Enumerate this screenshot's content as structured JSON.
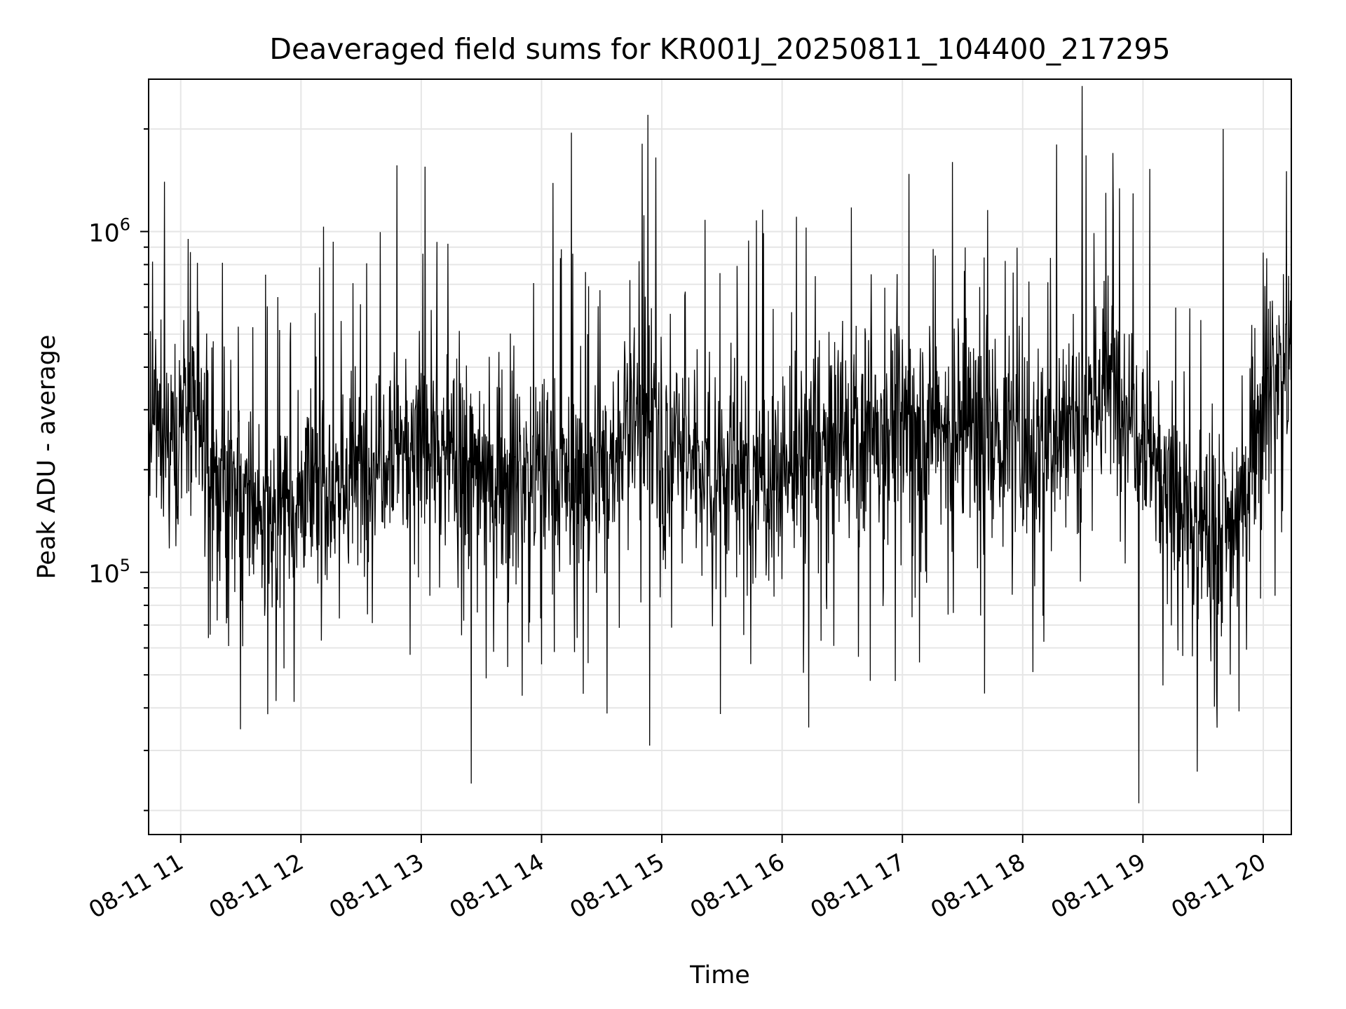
{
  "chart_data": {
    "type": "line",
    "title": "Deaveraged field sums for KR001J_20250811_104400_217295",
    "xlabel": "Time",
    "ylabel": "Peak ADU - average",
    "yscale": "log",
    "xlim": [
      "08-11 10:44",
      "08-11 20:14"
    ],
    "ylim": [
      17000,
      2800000
    ],
    "grid": true,
    "line_color": "#000000",
    "grid_color": "#e6e6e6",
    "x_ticks": [
      "08-11 11",
      "08-11 12",
      "08-11 13",
      "08-11 14",
      "08-11 15",
      "08-11 16",
      "08-11 17",
      "08-11 18",
      "08-11 19",
      "08-11 20"
    ],
    "y_major_ticks": [
      {
        "value": 100000,
        "base": "10",
        "exp": "5"
      },
      {
        "value": 1000000,
        "base": "10",
        "exp": "6"
      }
    ],
    "series": [
      {
        "x": [
          "08-11 10:45",
          "08-11 11:00",
          "08-11 11:15",
          "08-11 11:30",
          "08-11 11:45",
          "08-11 12:00",
          "08-11 12:15",
          "08-11 12:30",
          "08-11 12:45",
          "08-11 13:00",
          "08-11 13:15",
          "08-11 13:30",
          "08-11 13:45",
          "08-11 14:00",
          "08-11 14:15",
          "08-11 14:30",
          "08-11 14:45",
          "08-11 15:00",
          "08-11 15:15",
          "08-11 15:30",
          "08-11 15:45",
          "08-11 16:00",
          "08-11 16:15",
          "08-11 16:30",
          "08-11 16:45",
          "08-11 17:00",
          "08-11 17:15",
          "08-11 17:30",
          "08-11 17:45",
          "08-11 18:00",
          "08-11 18:15",
          "08-11 18:30",
          "08-11 18:45",
          "08-11 19:00",
          "08-11 19:15",
          "08-11 19:30",
          "08-11 19:45",
          "08-11 20:00",
          "08-11 20:10"
        ],
        "y": [
          250000,
          300000,
          200000,
          160000,
          150000,
          170000,
          180000,
          200000,
          260000,
          240000,
          220000,
          210000,
          190000,
          200000,
          180000,
          190000,
          300000,
          240000,
          220000,
          200000,
          180000,
          200000,
          220000,
          240000,
          260000,
          280000,
          270000,
          260000,
          250000,
          240000,
          260000,
          320000,
          370000,
          280000,
          170000,
          130000,
          140000,
          330000,
          420000
        ],
        "peaks": [
          {
            "x": "08-11 10:52",
            "y": 1400000
          },
          {
            "x": "08-11 13:02",
            "y": 1550000
          },
          {
            "x": "08-11 14:15",
            "y": 1950000
          },
          {
            "x": "08-11 14:53",
            "y": 2200000
          },
          {
            "x": "08-11 14:57",
            "y": 1650000
          },
          {
            "x": "08-11 17:25",
            "y": 1600000
          },
          {
            "x": "08-11 18:17",
            "y": 1800000
          },
          {
            "x": "08-11 18:45",
            "y": 1700000
          },
          {
            "x": "08-11 19:40",
            "y": 2000000
          }
        ],
        "dips": [
          {
            "x": "08-11 13:25",
            "y": 24000
          },
          {
            "x": "08-11 14:54",
            "y": 31000
          },
          {
            "x": "08-11 18:58",
            "y": 21000
          },
          {
            "x": "08-11 19:27",
            "y": 26000
          },
          {
            "x": "08-11 19:37",
            "y": 35000
          }
        ]
      }
    ]
  }
}
